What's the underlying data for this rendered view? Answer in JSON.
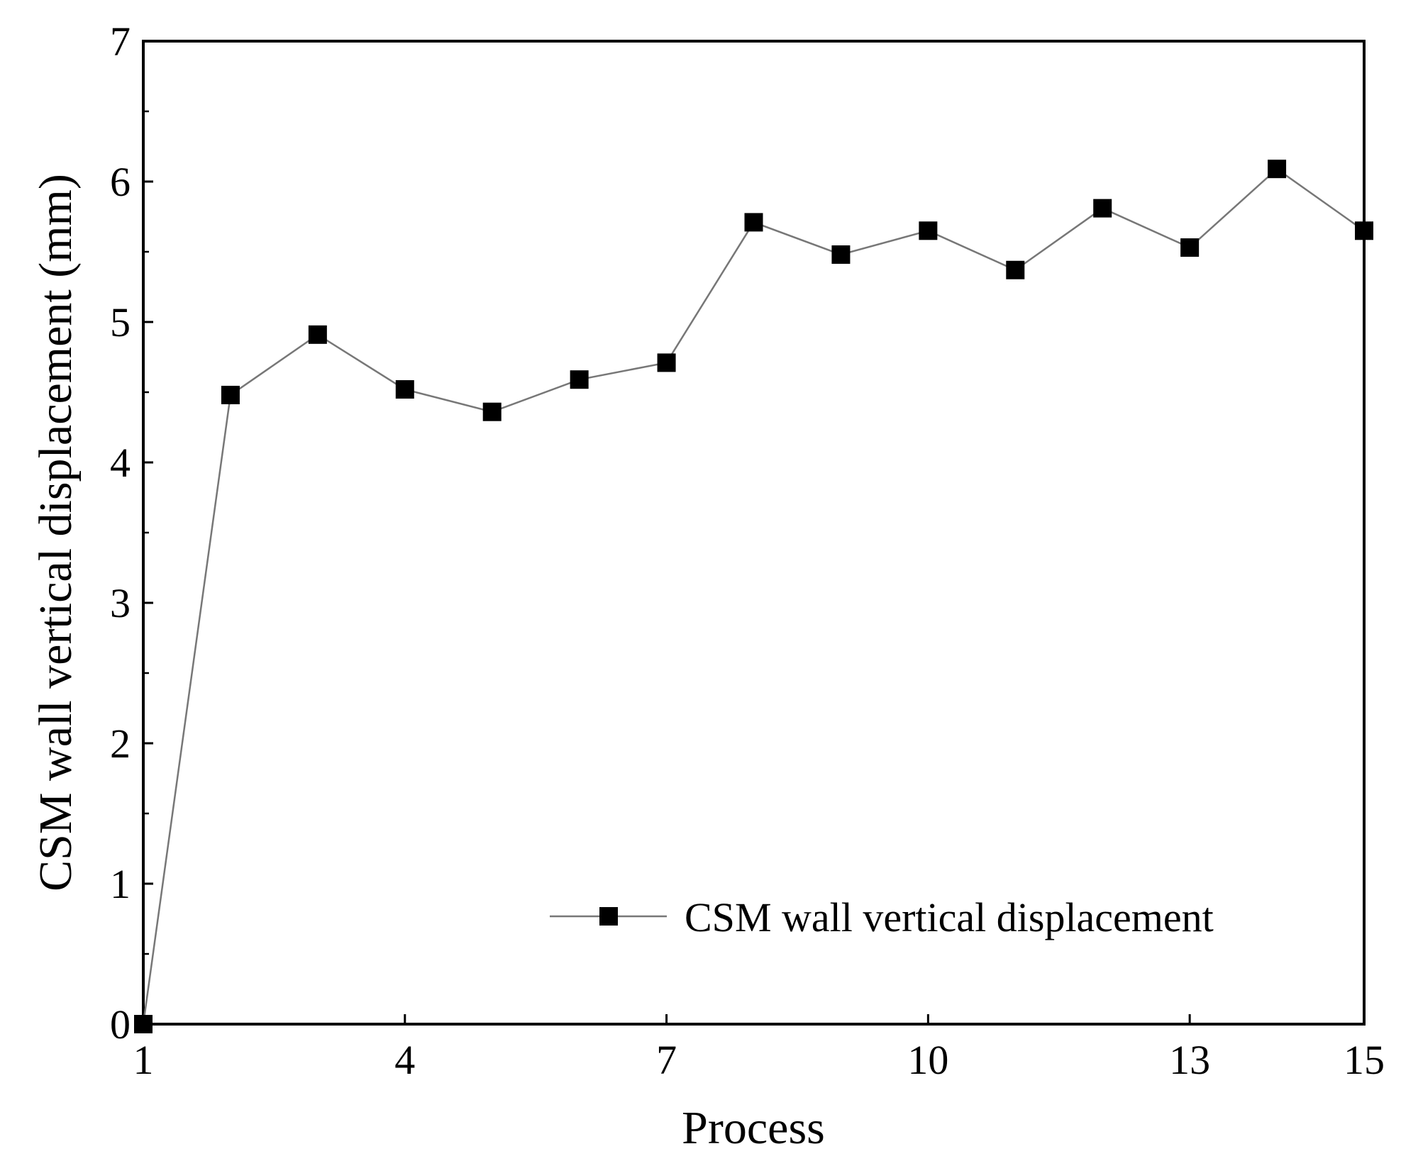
{
  "chart_data": {
    "type": "line",
    "title": "",
    "xlabel": "Process",
    "ylabel": "CSM wall vertical displacement (mm)",
    "xlim": [
      1,
      15
    ],
    "ylim": [
      0,
      7
    ],
    "x_ticks": [
      1,
      4,
      7,
      10,
      13,
      15
    ],
    "x_tick_labels": [
      "1",
      "4",
      "7",
      "10",
      "13",
      "15"
    ],
    "y_ticks": [
      0,
      1,
      2,
      3,
      4,
      5,
      6,
      7
    ],
    "y_tick_labels": [
      "0",
      "1",
      "2",
      "3",
      "4",
      "5",
      "6",
      "7"
    ],
    "grid": false,
    "legend_position": "bottom-right",
    "series": [
      {
        "name": "CSM wall vertical displacement",
        "marker": "square",
        "line_color": "#777777",
        "marker_color": "#000000",
        "x": [
          1,
          2,
          3,
          4,
          5,
          6,
          7,
          8,
          9,
          10,
          11,
          12,
          13,
          14,
          15
        ],
        "values": [
          0,
          4.48,
          4.91,
          4.52,
          4.36,
          4.59,
          4.71,
          5.71,
          5.48,
          5.65,
          5.37,
          5.81,
          5.53,
          6.09,
          5.65
        ]
      }
    ]
  }
}
